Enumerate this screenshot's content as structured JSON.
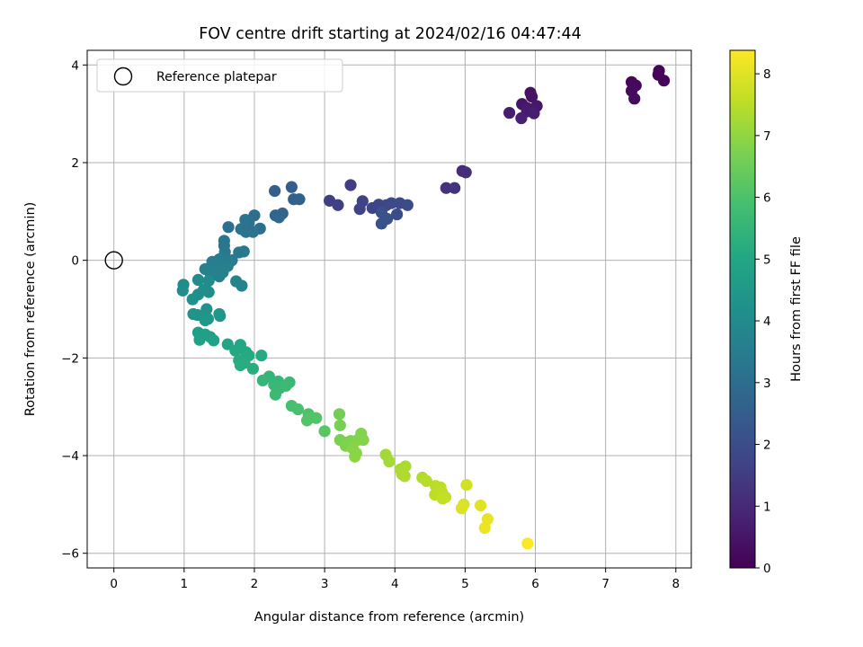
{
  "chart_data": {
    "type": "scatter",
    "title": "FOV centre drift starting at 2024/02/16 04:47:44",
    "xlabel": "Angular distance from reference (arcmin)",
    "ylabel": "Rotation from reference (arcmin)",
    "xlim": [
      -0.38,
      8.22
    ],
    "ylim": [
      -6.3,
      4.3
    ],
    "xticks": [
      0,
      1,
      2,
      3,
      4,
      5,
      6,
      7,
      8
    ],
    "yticks": [
      -6,
      -4,
      -2,
      0,
      2,
      4
    ],
    "grid": true,
    "legend": {
      "placement": "top-left",
      "entries": [
        "Reference platepar"
      ]
    },
    "reference_point": {
      "x": 0,
      "y": 0,
      "label": "Reference platepar"
    },
    "colorbar": {
      "label": "Hours from first FF file",
      "colormap": "viridis",
      "range": [
        0,
        8.38
      ],
      "ticks": [
        0,
        1,
        2,
        3,
        4,
        5,
        6,
        7,
        8
      ]
    },
    "points": [
      [
        7.76,
        3.88,
        0.05
      ],
      [
        7.75,
        3.8,
        0.08
      ],
      [
        7.83,
        3.68,
        0.1
      ],
      [
        7.37,
        3.65,
        0.15
      ],
      [
        7.43,
        3.58,
        0.18
      ],
      [
        7.37,
        3.47,
        0.22
      ],
      [
        7.41,
        3.31,
        0.25
      ],
      [
        5.93,
        3.43,
        0.4
      ],
      [
        5.95,
        3.35,
        0.45
      ],
      [
        5.81,
        3.2,
        0.5
      ],
      [
        6.02,
        3.16,
        0.55
      ],
      [
        5.88,
        3.12,
        0.58
      ],
      [
        5.94,
        3.09,
        0.62
      ],
      [
        5.88,
        3.05,
        0.65
      ],
      [
        5.63,
        3.02,
        0.68
      ],
      [
        5.98,
        3.01,
        0.72
      ],
      [
        5.8,
        2.91,
        0.75
      ],
      [
        4.96,
        1.83,
        1.05
      ],
      [
        5.01,
        1.8,
        1.1
      ],
      [
        4.73,
        1.48,
        1.2
      ],
      [
        4.85,
        1.48,
        1.25
      ],
      [
        3.37,
        1.54,
        1.5
      ],
      [
        3.07,
        1.22,
        1.55
      ],
      [
        3.19,
        1.13,
        1.6
      ],
      [
        3.54,
        1.21,
        1.65
      ],
      [
        3.5,
        1.05,
        1.7
      ],
      [
        3.68,
        1.07,
        1.72
      ],
      [
        3.77,
        1.14,
        1.75
      ],
      [
        3.88,
        1.13,
        1.8
      ],
      [
        3.95,
        1.17,
        1.85
      ],
      [
        4.07,
        1.17,
        1.9
      ],
      [
        4.18,
        1.13,
        1.95
      ],
      [
        4.03,
        0.94,
        2.0
      ],
      [
        3.81,
        0.98,
        2.05
      ],
      [
        3.89,
        0.85,
        2.1
      ],
      [
        3.81,
        0.75,
        2.15
      ],
      [
        2.53,
        1.5,
        2.5
      ],
      [
        2.29,
        1.42,
        2.55
      ],
      [
        2.56,
        1.25,
        2.6
      ],
      [
        2.64,
        1.25,
        2.62
      ],
      [
        2.4,
        0.96,
        2.7
      ],
      [
        2.3,
        0.92,
        2.75
      ],
      [
        2.35,
        0.88,
        2.78
      ],
      [
        2.0,
        0.92,
        3.0
      ],
      [
        2.08,
        0.65,
        3.05
      ],
      [
        1.92,
        0.77,
        3.08
      ],
      [
        1.63,
        0.68,
        3.1
      ],
      [
        1.81,
        0.64,
        3.15
      ],
      [
        1.88,
        0.58,
        3.18
      ],
      [
        1.98,
        0.58,
        3.2
      ],
      [
        1.87,
        0.83,
        3.22
      ],
      [
        1.57,
        0.4,
        3.3
      ],
      [
        1.57,
        0.3,
        3.32
      ],
      [
        1.58,
        0.17,
        3.35
      ],
      [
        1.78,
        0.16,
        3.38
      ],
      [
        1.85,
        0.18,
        3.4
      ],
      [
        1.56,
        0.07,
        3.45
      ],
      [
        1.68,
        0.0,
        3.48
      ],
      [
        1.5,
        0.02,
        3.5
      ],
      [
        1.52,
        -0.05,
        3.52
      ],
      [
        1.4,
        -0.03,
        3.55
      ],
      [
        1.45,
        -0.15,
        3.58
      ],
      [
        1.62,
        -0.12,
        3.6
      ],
      [
        1.3,
        -0.18,
        3.62
      ],
      [
        1.55,
        -0.25,
        3.65
      ],
      [
        1.38,
        -0.32,
        3.68
      ],
      [
        1.5,
        -0.33,
        3.7
      ],
      [
        1.74,
        -0.43,
        3.72
      ],
      [
        1.82,
        -0.52,
        3.75
      ],
      [
        1.2,
        -0.4,
        4.0
      ],
      [
        1.35,
        -0.42,
        4.02
      ],
      [
        0.99,
        -0.5,
        4.05
      ],
      [
        0.98,
        -0.62,
        4.08
      ],
      [
        1.28,
        -0.6,
        4.1
      ],
      [
        1.35,
        -0.65,
        4.12
      ],
      [
        1.2,
        -0.7,
        4.15
      ],
      [
        1.12,
        -0.8,
        4.18
      ],
      [
        1.32,
        -1.0,
        4.25
      ],
      [
        1.13,
        -1.1,
        4.3
      ],
      [
        1.19,
        -1.12,
        4.32
      ],
      [
        1.3,
        -1.12,
        4.35
      ],
      [
        1.5,
        -1.1,
        4.38
      ],
      [
        1.51,
        -1.14,
        4.4
      ],
      [
        1.34,
        -1.2,
        4.42
      ],
      [
        1.3,
        -1.23,
        4.45
      ],
      [
        1.2,
        -1.48,
        4.7
      ],
      [
        1.3,
        -1.52,
        4.72
      ],
      [
        1.37,
        -1.57,
        4.75
      ],
      [
        1.22,
        -1.63,
        4.78
      ],
      [
        1.42,
        -1.64,
        4.8
      ],
      [
        1.62,
        -1.72,
        4.95
      ],
      [
        1.8,
        -1.73,
        5.0
      ],
      [
        1.73,
        -1.85,
        5.05
      ],
      [
        1.88,
        -1.88,
        5.08
      ],
      [
        1.92,
        -1.95,
        5.1
      ],
      [
        2.1,
        -1.95,
        5.12
      ],
      [
        1.78,
        -2.05,
        5.15
      ],
      [
        1.86,
        -2.1,
        5.18
      ],
      [
        1.8,
        -2.15,
        5.2
      ],
      [
        1.98,
        -2.22,
        5.22
      ],
      [
        2.21,
        -2.38,
        5.5
      ],
      [
        2.12,
        -2.46,
        5.55
      ],
      [
        2.34,
        -2.48,
        5.58
      ],
      [
        2.28,
        -2.55,
        5.6
      ],
      [
        2.36,
        -2.62,
        5.62
      ],
      [
        2.5,
        -2.5,
        5.65
      ],
      [
        2.45,
        -2.57,
        5.68
      ],
      [
        2.3,
        -2.75,
        5.7
      ],
      [
        2.53,
        -2.98,
        5.9
      ],
      [
        2.62,
        -3.05,
        5.95
      ],
      [
        2.77,
        -3.15,
        6.0
      ],
      [
        2.8,
        -3.22,
        6.05
      ],
      [
        2.88,
        -3.23,
        6.08
      ],
      [
        2.75,
        -3.28,
        6.1
      ],
      [
        3.0,
        -3.5,
        6.2
      ],
      [
        3.21,
        -3.15,
        6.6
      ],
      [
        3.22,
        -3.38,
        6.65
      ],
      [
        3.22,
        -3.68,
        6.7
      ],
      [
        3.32,
        -3.73,
        6.72
      ],
      [
        3.37,
        -3.7,
        6.75
      ],
      [
        3.3,
        -3.8,
        6.78
      ],
      [
        3.52,
        -3.55,
        6.8
      ],
      [
        3.47,
        -3.68,
        6.82
      ],
      [
        3.55,
        -3.68,
        6.85
      ],
      [
        3.4,
        -3.85,
        6.88
      ],
      [
        3.45,
        -3.95,
        6.9
      ],
      [
        3.43,
        -4.02,
        6.92
      ],
      [
        3.87,
        -3.98,
        7.2
      ],
      [
        3.92,
        -4.12,
        7.25
      ],
      [
        4.08,
        -4.28,
        7.3
      ],
      [
        4.15,
        -4.22,
        7.32
      ],
      [
        4.1,
        -4.38,
        7.35
      ],
      [
        4.14,
        -4.42,
        7.38
      ],
      [
        4.39,
        -4.45,
        7.4
      ],
      [
        4.45,
        -4.52,
        7.45
      ],
      [
        4.58,
        -4.62,
        7.5
      ],
      [
        4.65,
        -4.65,
        7.52
      ],
      [
        4.57,
        -4.8,
        7.55
      ],
      [
        4.67,
        -4.75,
        7.58
      ],
      [
        4.72,
        -4.85,
        7.6
      ],
      [
        4.68,
        -4.88,
        7.62
      ],
      [
        5.02,
        -4.6,
        7.8
      ],
      [
        4.98,
        -5.0,
        7.9
      ],
      [
        4.95,
        -5.08,
        7.95
      ],
      [
        5.22,
        -5.02,
        8.0
      ],
      [
        5.32,
        -5.3,
        8.1
      ],
      [
        5.28,
        -5.48,
        8.15
      ],
      [
        5.89,
        -5.8,
        8.35
      ]
    ]
  }
}
